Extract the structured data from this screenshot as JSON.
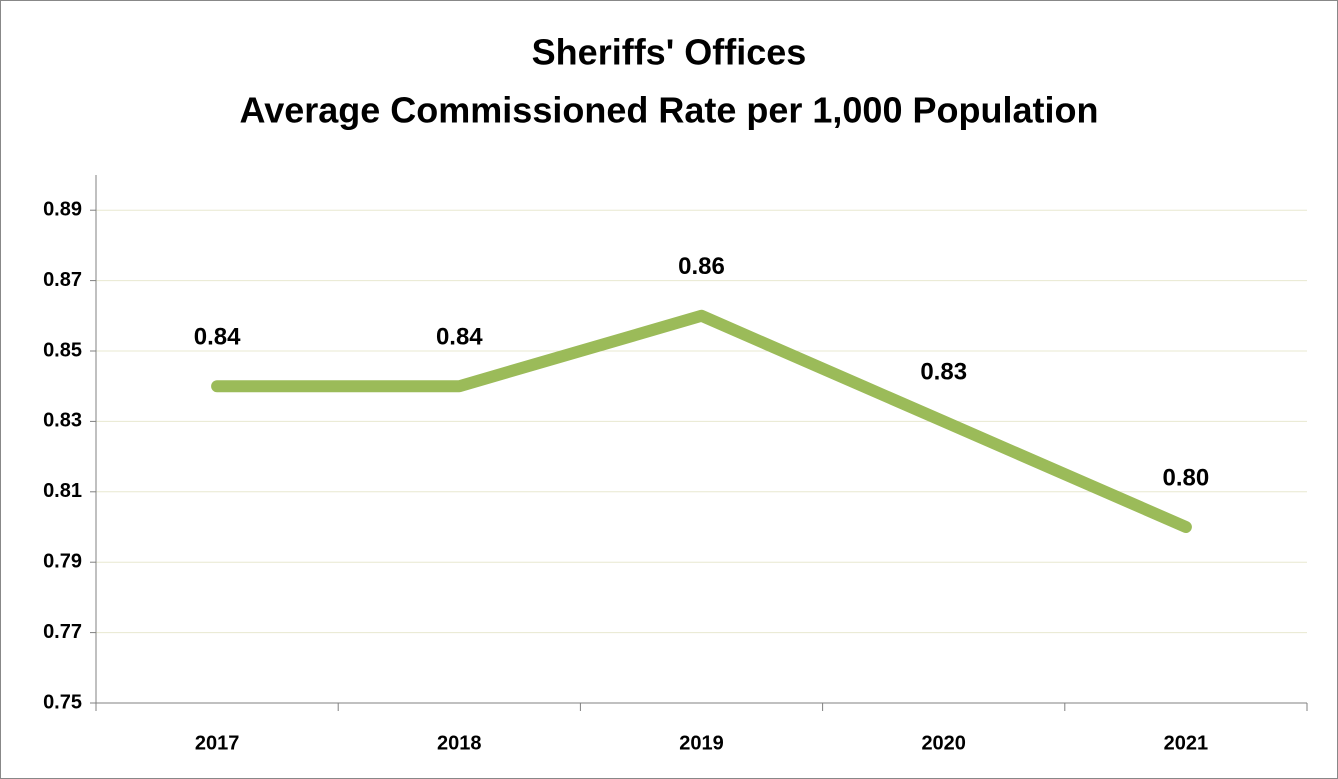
{
  "chart_data": {
    "type": "line",
    "title": "Sheriffs' Offices",
    "subtitle": "Average Commissioned Rate per 1,000 Population",
    "categories": [
      "2017",
      "2018",
      "2019",
      "2020",
      "2021"
    ],
    "series": [
      {
        "color": "#9bbb59",
        "values": [
          0.84,
          0.84,
          0.86,
          0.83,
          0.8
        ],
        "value_labels": [
          "0.84",
          "0.84",
          "0.86",
          "0.83",
          "0.80"
        ]
      }
    ],
    "ylim": [
      0.75,
      0.9
    ],
    "yticks": [
      0.75,
      0.77,
      0.79,
      0.81,
      0.83,
      0.85,
      0.87,
      0.89
    ],
    "grid": true
  }
}
